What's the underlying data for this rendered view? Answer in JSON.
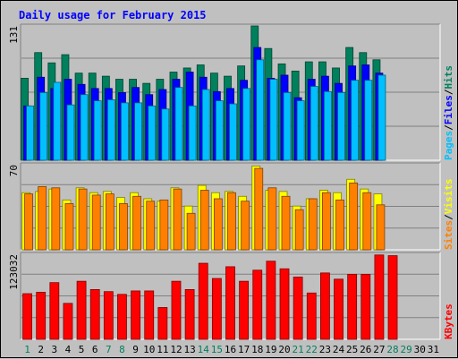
{
  "title": "Daily usage for February 2015",
  "colors": {
    "background": "#c0c0c0",
    "panel": "#c0c0c0",
    "grid": "#808080",
    "title": "#0000ff",
    "hits": "#00805c",
    "files": "#0000ff",
    "pages": "#00c0ff",
    "visits": "#ffff00",
    "sites": "#ff8000",
    "kbytes": "#ff0000",
    "weekday_label": "#000000",
    "weekend_label": "#00805c"
  },
  "chart_data": [
    {
      "type": "bar",
      "name": "hits-files-pages",
      "ymax_label": "131",
      "ylim": [
        0,
        131
      ],
      "grid": true,
      "right_label": [
        "Pages",
        "Files",
        "Hits"
      ],
      "series": [
        {
          "name": "Hits",
          "values": [
            80,
            105,
            95,
            103,
            85,
            85,
            82,
            79,
            79,
            75,
            79,
            86,
            90,
            93,
            85,
            82,
            92,
            131,
            109,
            94,
            87,
            96,
            96,
            90,
            110,
            105,
            98,
            0,
            0,
            0,
            0
          ]
        },
        {
          "name": "Files",
          "values": [
            53,
            81,
            70,
            79,
            74,
            70,
            70,
            66,
            71,
            64,
            69,
            79,
            86,
            81,
            67,
            70,
            78,
            110,
            80,
            83,
            61,
            79,
            82,
            75,
            92,
            93,
            85,
            0,
            0,
            0,
            0
          ]
        },
        {
          "name": "Pages",
          "values": [
            53,
            66,
            76,
            54,
            64,
            58,
            59,
            56,
            56,
            53,
            50,
            71,
            53,
            69,
            58,
            55,
            70,
            98,
            79,
            66,
            58,
            72,
            67,
            66,
            78,
            78,
            83,
            0,
            0,
            0,
            0
          ]
        }
      ]
    },
    {
      "type": "bar",
      "name": "visits-sites",
      "ymax_label": "70",
      "ylim": [
        0,
        70
      ],
      "grid": true,
      "right_label": [
        "Sites",
        "Visits"
      ],
      "series": [
        {
          "name": "Visits",
          "values": [
            47,
            48,
            50,
            41,
            51,
            47,
            48,
            43,
            47,
            42,
            40,
            51,
            36,
            53,
            47,
            48,
            44,
            69,
            49,
            48,
            36,
            42,
            49,
            47,
            58,
            50,
            46,
            0,
            0,
            0,
            0
          ]
        },
        {
          "name": "Sites",
          "values": [
            46,
            52,
            51,
            38,
            50,
            45,
            46,
            38,
            44,
            40,
            41,
            50,
            30,
            49,
            42,
            47,
            40,
            67,
            51,
            44,
            33,
            42,
            47,
            41,
            55,
            47,
            37,
            0,
            0,
            0,
            0
          ]
        }
      ]
    },
    {
      "type": "bar",
      "name": "kbytes",
      "ymax_label": "123032",
      "ylim": [
        0,
        123032
      ],
      "grid": true,
      "right_label": [
        "KBytes"
      ],
      "series": [
        {
          "name": "KBytes",
          "values": [
            66000,
            68000,
            82000,
            52000,
            84000,
            72000,
            69000,
            65000,
            70000,
            70000,
            46000,
            84000,
            72000,
            110000,
            88000,
            105000,
            84000,
            100000,
            113000,
            102000,
            90000,
            67000,
            96000,
            87000,
            94000,
            94000,
            122000,
            121000,
            0,
            0,
            0
          ]
        }
      ]
    }
  ],
  "x_labels": [
    "1",
    "2",
    "3",
    "4",
    "5",
    "6",
    "7",
    "8",
    "9",
    "10",
    "11",
    "12",
    "13",
    "14",
    "15",
    "16",
    "17",
    "18",
    "19",
    "20",
    "21",
    "22",
    "23",
    "24",
    "25",
    "26",
    "27",
    "28",
    "29",
    "30",
    "31"
  ],
  "weekend_days": [
    1,
    7,
    8,
    14,
    15,
    21,
    22,
    28,
    29
  ]
}
